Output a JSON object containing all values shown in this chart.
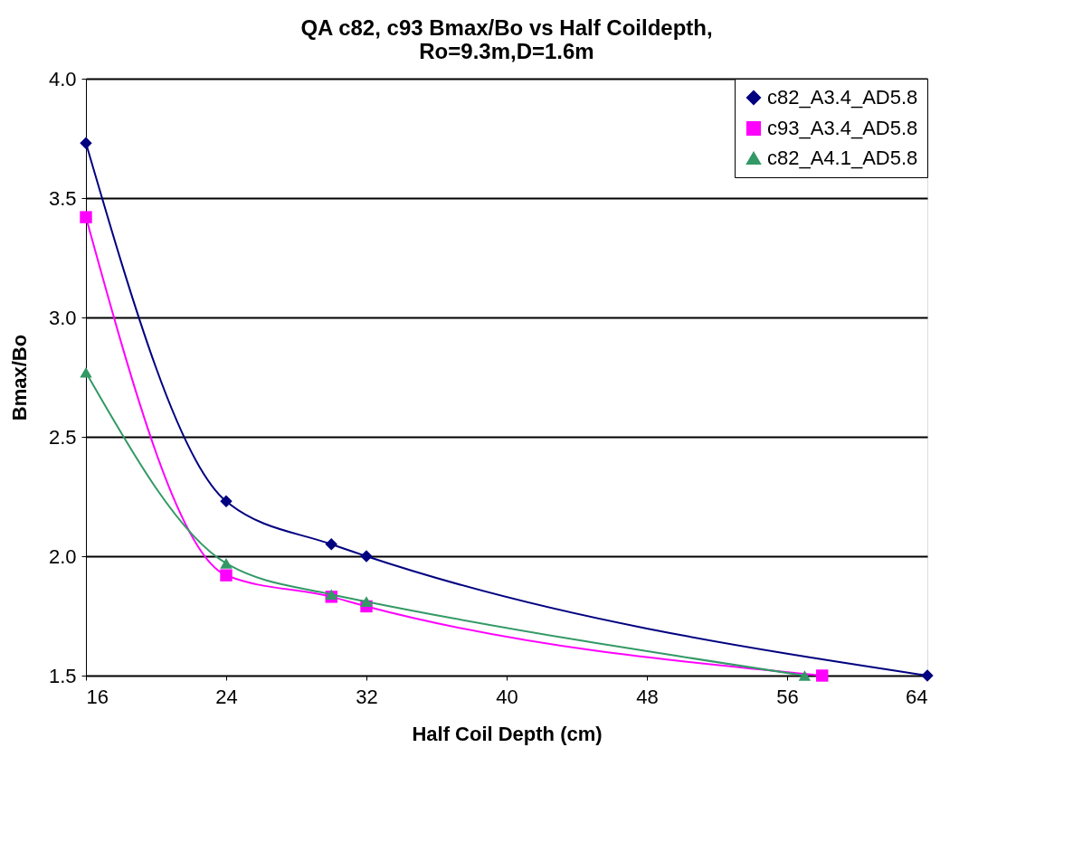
{
  "chart_data": {
    "type": "line",
    "title": [
      "QA c82, c93 Bmax/Bo vs Half Coildepth,",
      "Ro=9.3m,D=1.6m"
    ],
    "xlabel": "Half Coil Depth (cm)",
    "ylabel": "Bmax/Bo",
    "xlim": [
      16,
      64
    ],
    "xticks": [
      16,
      24,
      32,
      40,
      48,
      56,
      64
    ],
    "ylim": [
      1.5,
      4.0
    ],
    "yticks": [
      {
        "value": 1.5,
        "label": "1.5"
      },
      {
        "value": 2.0,
        "label": "2.0"
      },
      {
        "value": 2.5,
        "label": "2.5"
      },
      {
        "value": 3.0,
        "label": "3.0"
      },
      {
        "value": 3.5,
        "label": "3.5"
      },
      {
        "value": 4.0,
        "label": "4.0"
      }
    ],
    "grid": "y",
    "legend": "top right",
    "line_style": "solid",
    "series": [
      {
        "name": "c82_A3.4_AD5.8",
        "color": "#000080",
        "marker": "diamond",
        "x": [
          16,
          24,
          30,
          32,
          64
        ],
        "values": [
          3.73,
          2.23,
          2.05,
          2.0,
          1.5
        ]
      },
      {
        "name": "c93_A3.4_AD5.8",
        "color": "#ff00ff",
        "marker": "square",
        "x": [
          16,
          24,
          30,
          32,
          58
        ],
        "values": [
          3.42,
          1.92,
          1.83,
          1.79,
          1.5
        ]
      },
      {
        "name": "c82_A4.1_AD5.8",
        "color": "#339966",
        "marker": "triangle",
        "x": [
          16,
          24,
          30,
          32,
          57
        ],
        "values": [
          2.77,
          1.97,
          1.84,
          1.81,
          1.5
        ]
      }
    ]
  }
}
